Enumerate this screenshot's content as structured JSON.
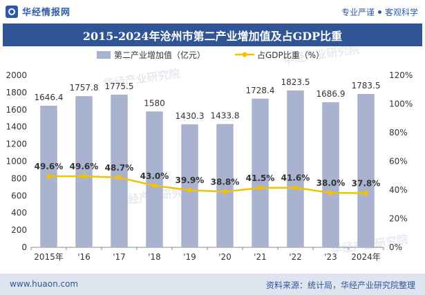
{
  "header": {
    "brand_name": "华经情报网",
    "slogan_left": "专业严谨",
    "slogan_right": "客观科学"
  },
  "title": "2015-2024年沧州市第二产业增加值及占GDP比重",
  "legend": {
    "bar_label": "第二产业增加值（亿元）",
    "line_label": "占GDP比重（%）"
  },
  "footer": {
    "website": "www.huaon.com",
    "source": "资料来源：统计局，华经产业研究院整理"
  },
  "watermark": "华经产业研究院",
  "colors": {
    "bar": "#a9b3cf",
    "line": "#f2c200",
    "title_bg": "#2f5597",
    "footer_bg": "#dfe5ef"
  },
  "chart_data": {
    "type": "bar",
    "title": "2015-2024年沧州市第二产业增加值及占GDP比重",
    "categories": [
      "2015年",
      "'16",
      "'17",
      "'18",
      "'19",
      "'20",
      "'21",
      "'22",
      "'23",
      "2024年"
    ],
    "series": [
      {
        "name": "第二产业增加值（亿元）",
        "type": "bar",
        "axis": "left",
        "values": [
          1646.4,
          1757.8,
          1775.5,
          1580,
          1430.3,
          1433.8,
          1728.4,
          1823.5,
          1686.9,
          1783.5
        ],
        "labels": [
          "1646.4",
          "1757.8",
          "1775.5",
          "1580",
          "1430.3",
          "1433.8",
          "1728.4",
          "1823.5",
          "1686.9",
          "1783.5"
        ]
      },
      {
        "name": "占GDP比重（%）",
        "type": "line",
        "axis": "right",
        "values": [
          49.6,
          49.6,
          48.7,
          43.0,
          39.9,
          38.8,
          41.5,
          41.6,
          38.0,
          37.8
        ],
        "labels": [
          "49.6%",
          "49.6%",
          "48.7%",
          "43.0%",
          "39.9%",
          "38.8%",
          "41.5%",
          "41.6%",
          "38.0%",
          "37.8%"
        ]
      }
    ],
    "ylim_left": [
      0,
      2000
    ],
    "yticks_left": [
      "0",
      "200",
      "400",
      "600",
      "800",
      "1000",
      "1200",
      "1400",
      "1600",
      "1800",
      "2000"
    ],
    "ylim_right": [
      0,
      120
    ],
    "yticks_right": [
      "0%",
      "20%",
      "40%",
      "60%",
      "80%",
      "100%",
      "120%"
    ],
    "legend_position": "top-center",
    "grid": false
  }
}
